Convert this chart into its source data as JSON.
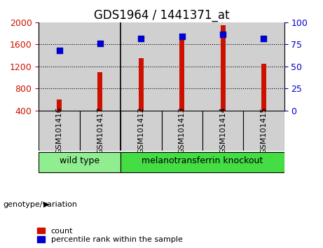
{
  "title": "GDS1964 / 1441371_at",
  "samples": [
    "GSM101416",
    "GSM101417",
    "GSM101412",
    "GSM101413",
    "GSM101414",
    "GSM101415"
  ],
  "counts": [
    600,
    1100,
    1350,
    1700,
    1950,
    1250
  ],
  "percentiles": [
    68,
    76,
    82,
    84,
    86,
    82
  ],
  "groups": [
    {
      "label": "wild type",
      "span": [
        0,
        1
      ],
      "color": "#90ee90"
    },
    {
      "label": "melanotransferrin knockout",
      "span": [
        2,
        5
      ],
      "color": "#44dd44"
    }
  ],
  "ylim_left": [
    400,
    2000
  ],
  "ylim_right": [
    0,
    100
  ],
  "yticks_left": [
    400,
    800,
    1200,
    1600,
    2000
  ],
  "yticks_right": [
    0,
    25,
    50,
    75,
    100
  ],
  "bar_color": "#cc1100",
  "scatter_color": "#0000cc",
  "bar_width": 0.12,
  "col_bg_color": "#d0d0d0",
  "plot_bg_color": "#ffffff",
  "title_fontsize": 12,
  "label_fontsize": 8,
  "tick_fontsize": 9,
  "group_label_fontsize": 9,
  "genotype_label": "genotype/variation",
  "legend_count_label": "count",
  "legend_pct_label": "percentile rank within the sample"
}
